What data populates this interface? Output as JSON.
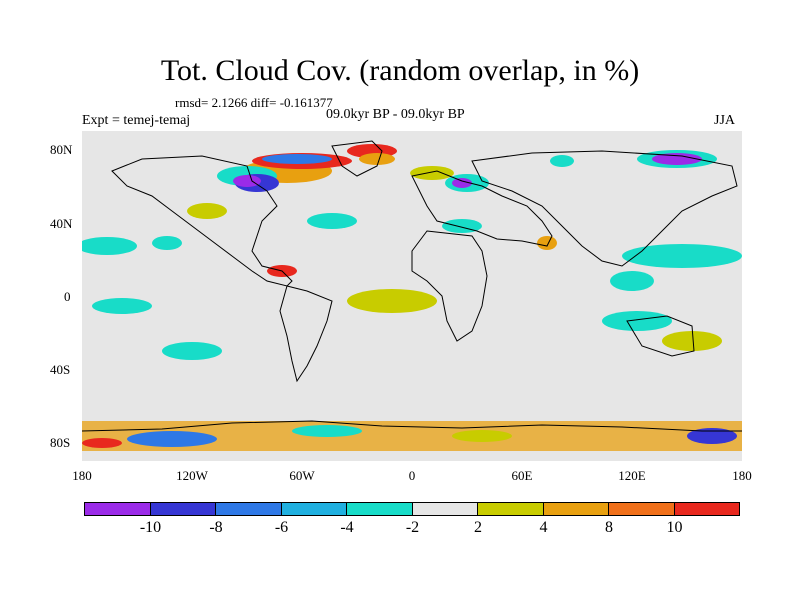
{
  "title": "Tot. Cloud Cov. (random overlap, in %)",
  "stats": "rmsd= 2.1266 diff= -0.161377",
  "subtitle": "09.0kyr BP - 09.0kyr BP",
  "experiment": "Expt = temej-temaj",
  "season": "JJA",
  "lat_labels": [
    "80N",
    "40N",
    "0",
    "40S",
    "80S"
  ],
  "lon_labels": [
    "180",
    "120W",
    "60W",
    "0",
    "60E",
    "120E",
    "180"
  ],
  "colorbar": {
    "colors": [
      "#9b2be8",
      "#3636d4",
      "#2e78e6",
      "#20b0e0",
      "#18dcc8",
      "#e6e6e6",
      "#c8cc00",
      "#e8a010",
      "#f0701a",
      "#e8281e"
    ],
    "labels": [
      "-10",
      "-8",
      "-6",
      "-4",
      "-2",
      "2",
      "4",
      "8",
      "10"
    ]
  },
  "map": {
    "background": "#e6e6e6",
    "lon_range": [
      -180,
      180
    ],
    "lat_range": [
      -90,
      90
    ]
  }
}
